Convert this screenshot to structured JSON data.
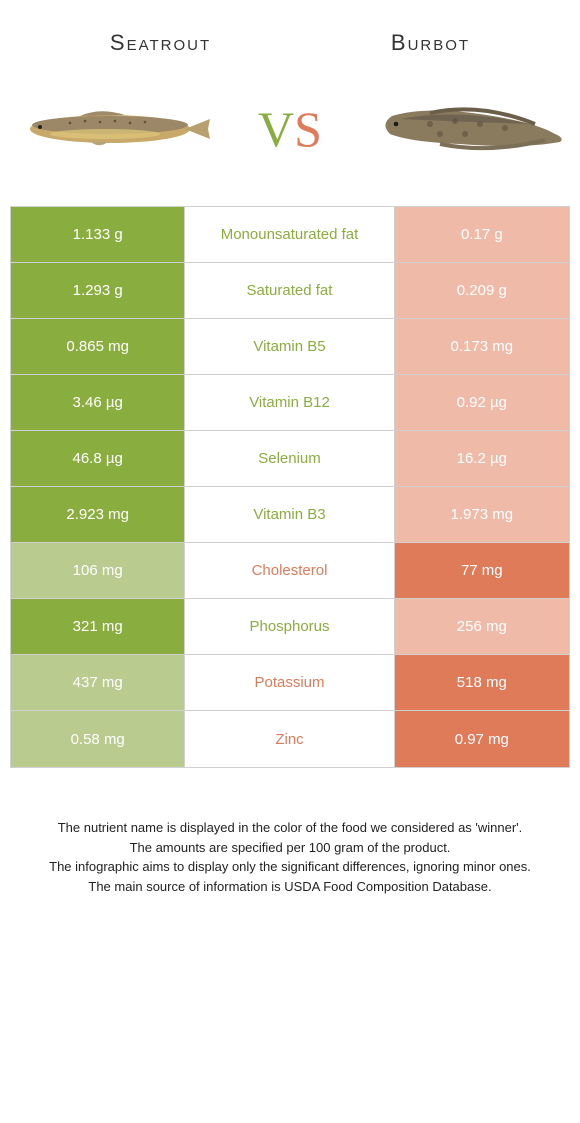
{
  "header": {
    "left_title": "Seatrout",
    "right_title": "Burbot",
    "vs_v": "V",
    "vs_s": "S"
  },
  "colors": {
    "left_full": "#8aad3f",
    "left_dim": "#b9cb8f",
    "right_full": "#e07b5a",
    "right_dim": "#efbaa8",
    "border": "#d0d0d0",
    "text_white": "#ffffff"
  },
  "rows": [
    {
      "left": "1.133 g",
      "center": "Monounsaturated fat",
      "right": "0.17 g",
      "winner": "left"
    },
    {
      "left": "1.293 g",
      "center": "Saturated fat",
      "right": "0.209 g",
      "winner": "left"
    },
    {
      "left": "0.865 mg",
      "center": "Vitamin B5",
      "right": "0.173 mg",
      "winner": "left"
    },
    {
      "left": "3.46 µg",
      "center": "Vitamin B12",
      "right": "0.92 µg",
      "winner": "left"
    },
    {
      "left": "46.8 µg",
      "center": "Selenium",
      "right": "16.2 µg",
      "winner": "left"
    },
    {
      "left": "2.923 mg",
      "center": "Vitamin B3",
      "right": "1.973 mg",
      "winner": "left"
    },
    {
      "left": "106 mg",
      "center": "Cholesterol",
      "right": "77 mg",
      "winner": "right"
    },
    {
      "left": "321 mg",
      "center": "Phosphorus",
      "right": "256 mg",
      "winner": "left"
    },
    {
      "left": "437 mg",
      "center": "Potassium",
      "right": "518 mg",
      "winner": "right"
    },
    {
      "left": "0.58 mg",
      "center": "Zinc",
      "right": "0.97 mg",
      "winner": "right"
    }
  ],
  "footer": {
    "line1": "The nutrient name is displayed in the color of the food we considered as 'winner'.",
    "line2": "The amounts are specified per 100 gram of the product.",
    "line3": "The infographic aims to display only the significant differences, ignoring minor ones.",
    "line4": "The main source of information is USDA Food Composition Database."
  }
}
